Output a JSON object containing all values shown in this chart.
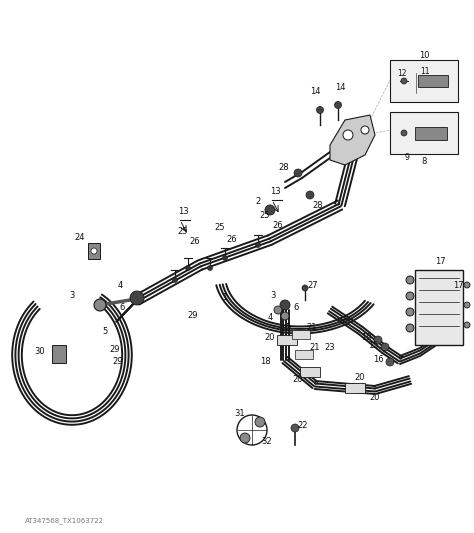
{
  "bg_color": "#ffffff",
  "line_color": "#1a1a1a",
  "watermark": "AT347568_TX1063722",
  "figsize": [
    4.74,
    5.33
  ],
  "dpi": 100
}
